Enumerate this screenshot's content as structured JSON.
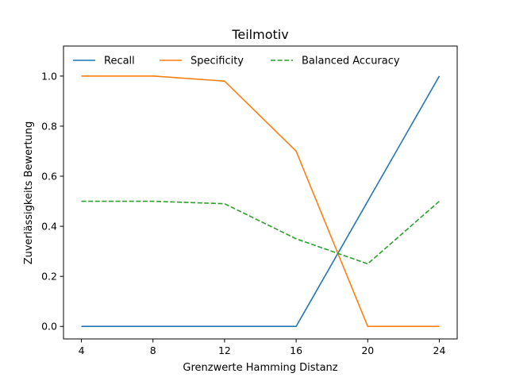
{
  "chart_data": {
    "type": "line",
    "title": "Teilmotiv",
    "xlabel": "Grenzwerte Hamming Distanz",
    "ylabel": "Zuverlässigkeits Bewertung",
    "x": [
      4,
      8,
      12,
      16,
      20,
      24
    ],
    "xticks": [
      4,
      8,
      12,
      16,
      20,
      24
    ],
    "yticks": [
      0.0,
      0.2,
      0.4,
      0.6,
      0.8,
      1.0
    ],
    "ytick_labels": [
      "0.0",
      "0.2",
      "0.4",
      "0.6",
      "0.8",
      "1.0"
    ],
    "xlim": [
      3,
      25
    ],
    "ylim": [
      -0.05,
      1.12
    ],
    "grid": false,
    "legend_position": "top",
    "series": [
      {
        "name": "Recall",
        "values": [
          0.0,
          0.0,
          0.0,
          0.0,
          0.5,
          1.0
        ],
        "color": "#1f77b4",
        "style": "solid"
      },
      {
        "name": "Specificity",
        "values": [
          1.0,
          1.0,
          0.98,
          0.7,
          0.0,
          0.0
        ],
        "color": "#ff7f0e",
        "style": "solid"
      },
      {
        "name": "Balanced Accuracy",
        "values": [
          0.5,
          0.5,
          0.49,
          0.35,
          0.25,
          0.5
        ],
        "color": "#2ca02c",
        "style": "dashed"
      }
    ]
  }
}
